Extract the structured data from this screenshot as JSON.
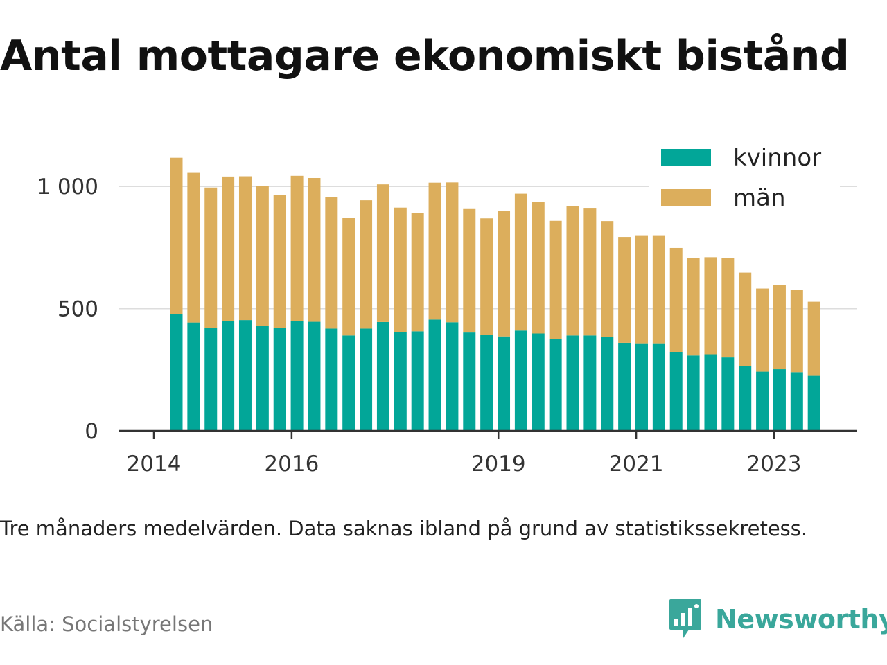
{
  "title": "Antal mottagare ekonomiskt bistånd",
  "note": "Tre månaders medelvärden. Data saknas ibland på grund av statistikssekretess.",
  "source": "Källa: Socialstyrelsen",
  "brand": "Newsworthy",
  "colors": {
    "kvinnor": "#02a698",
    "man": "#dcae5c",
    "axis": "#333333",
    "grid": "#dddddd",
    "brand": "#3aa79b"
  },
  "chart_data": {
    "type": "bar",
    "stacked": true,
    "x_ticks": [
      "2014",
      "2016",
      "2019",
      "2021",
      "2023"
    ],
    "y_ticks": [
      "0",
      "500",
      "1 000"
    ],
    "ylim": [
      0,
      1250
    ],
    "grid": true,
    "legend_position": "top-right",
    "legend": [
      "kvinnor",
      "män"
    ],
    "categories": [
      "2014-Q2",
      "2014-Q3",
      "2014-Q4",
      "2015-Q1",
      "2015-Q2",
      "2015-Q3",
      "2015-Q4",
      "2016-Q1",
      "2016-Q2",
      "2016-Q3",
      "2016-Q4",
      "2017-Q1",
      "2017-Q2",
      "2017-Q3",
      "2017-Q4",
      "2018-Q1",
      "2018-Q2",
      "2018-Q3",
      "2018-Q4",
      "2019-Q1",
      "2019-Q2",
      "2019-Q3",
      "2019-Q4",
      "2020-Q1",
      "2020-Q2",
      "2020-Q3",
      "2020-Q4",
      "2021-Q1",
      "2021-Q2",
      "2021-Q3",
      "2021-Q4",
      "2022-Q1",
      "2022-Q2",
      "2022-Q3",
      "2022-Q4",
      "2023-Q1",
      "2023-Q2",
      "2023-Q3"
    ],
    "series": [
      {
        "name": "kvinnor",
        "values": [
          477,
          443,
          420,
          450,
          453,
          428,
          422,
          448,
          446,
          418,
          390,
          418,
          445,
          405,
          407,
          455,
          444,
          402,
          391,
          386,
          410,
          398,
          374,
          390,
          390,
          385,
          360,
          358,
          358,
          323,
          308,
          313,
          300,
          265,
          242,
          252,
          240,
          225
        ]
      },
      {
        "name": "män",
        "values": [
          640,
          612,
          575,
          590,
          588,
          572,
          542,
          595,
          588,
          538,
          482,
          525,
          563,
          508,
          485,
          560,
          572,
          508,
          478,
          512,
          560,
          537,
          485,
          530,
          522,
          473,
          433,
          442,
          442,
          425,
          398,
          397,
          407,
          382,
          340,
          345,
          337,
          303
        ]
      }
    ]
  }
}
